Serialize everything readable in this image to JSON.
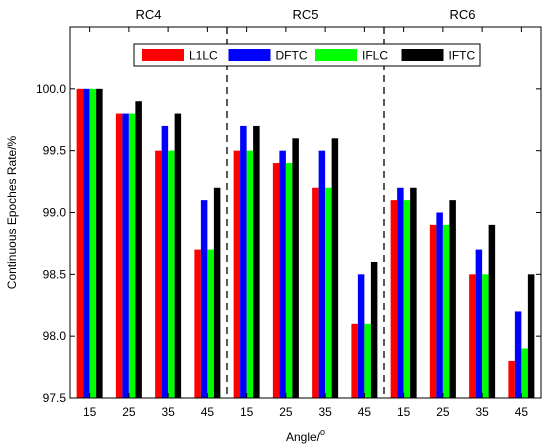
{
  "chart_data": {
    "type": "bar",
    "title": "",
    "xlabel": "Angle/",
    "xlabel_superscript": "o",
    "ylabel": "Continuous Epoches Rate/%",
    "ylim": [
      97.5,
      100.5
    ],
    "yticks": [
      "97.5",
      "98.0",
      "98.5",
      "99.0",
      "99.5",
      "100.0"
    ],
    "groups": [
      "RC4",
      "RC5",
      "RC6"
    ],
    "categories": [
      "15",
      "25",
      "35",
      "45",
      "15",
      "25",
      "35",
      "45",
      "15",
      "25",
      "35",
      "45"
    ],
    "legend_position": "top-center",
    "grid": false,
    "series": [
      {
        "name": "L1LC",
        "color": "#ff0000",
        "values": [
          100.0,
          99.8,
          99.5,
          98.7,
          99.5,
          99.4,
          99.2,
          98.1,
          99.1,
          98.9,
          98.5,
          97.8
        ]
      },
      {
        "name": "DFTC",
        "color": "#0000ff",
        "values": [
          100.0,
          99.8,
          99.7,
          99.1,
          99.7,
          99.5,
          99.5,
          98.5,
          99.2,
          99.0,
          98.7,
          98.2
        ]
      },
      {
        "name": "IFLC",
        "color": "#00ff00",
        "values": [
          100.0,
          99.8,
          99.5,
          98.7,
          99.5,
          99.4,
          99.2,
          98.1,
          99.1,
          98.9,
          98.5,
          97.9
        ]
      },
      {
        "name": "IFTC",
        "color": "#000000",
        "values": [
          100.0,
          99.9,
          99.8,
          99.2,
          99.7,
          99.6,
          99.6,
          98.6,
          99.2,
          99.1,
          98.9,
          98.5
        ]
      }
    ]
  }
}
